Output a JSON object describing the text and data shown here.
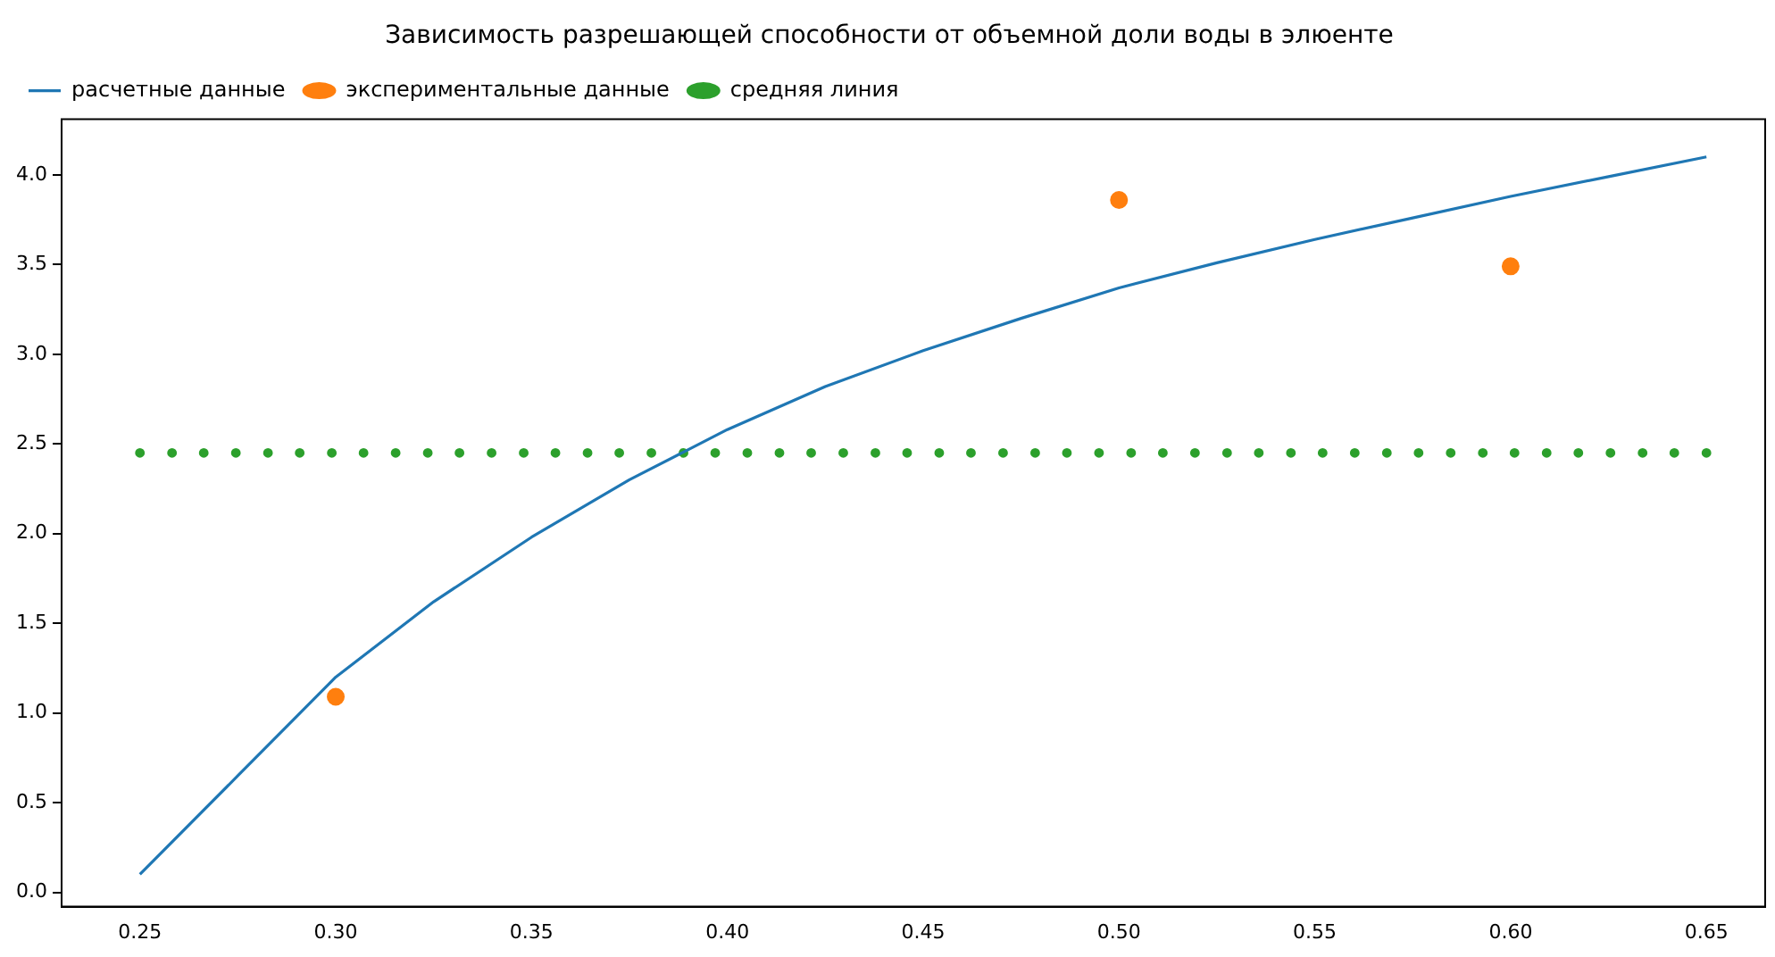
{
  "chart_data": {
    "type": "line",
    "title": "Зависимость разрешающей способности от объемной доли воды в элюенте",
    "series": [
      {
        "name": "расчетные данные",
        "type": "line",
        "marker": "none",
        "color": "#1f77b4",
        "x": [
          0.25,
          0.275,
          0.3,
          0.325,
          0.35,
          0.375,
          0.4,
          0.425,
          0.45,
          0.475,
          0.5,
          0.525,
          0.55,
          0.575,
          0.6,
          0.625,
          0.65
        ],
        "values": [
          0.1,
          0.65,
          1.2,
          1.62,
          1.98,
          2.3,
          2.58,
          2.82,
          3.02,
          3.2,
          3.37,
          3.51,
          3.64,
          3.76,
          3.88,
          3.99,
          4.1
        ]
      },
      {
        "name": "экспериментальные данные",
        "type": "scatter",
        "marker": "circle",
        "color": "#ff7f0e",
        "x": [
          0.3,
          0.5,
          0.6
        ],
        "values": [
          1.09,
          3.86,
          3.49
        ]
      },
      {
        "name": "средняя линия",
        "type": "scatter",
        "marker": "circle",
        "color": "#2ca02c",
        "x": [
          0.25,
          0.2582,
          0.2663,
          0.2745,
          0.2827,
          0.2908,
          0.299,
          0.3071,
          0.3153,
          0.3235,
          0.3316,
          0.3398,
          0.348,
          0.3561,
          0.3643,
          0.3724,
          0.3806,
          0.3888,
          0.3969,
          0.4051,
          0.4133,
          0.4214,
          0.4296,
          0.4378,
          0.4459,
          0.4541,
          0.4622,
          0.4704,
          0.4786,
          0.4867,
          0.4949,
          0.5031,
          0.5112,
          0.5194,
          0.5276,
          0.5357,
          0.5439,
          0.552,
          0.5602,
          0.5684,
          0.5765,
          0.5847,
          0.5929,
          0.601,
          0.6092,
          0.6173,
          0.6255,
          0.6337,
          0.6418,
          0.65
        ],
        "values": [
          2.45,
          2.45,
          2.45,
          2.45,
          2.45,
          2.45,
          2.45,
          2.45,
          2.45,
          2.45,
          2.45,
          2.45,
          2.45,
          2.45,
          2.45,
          2.45,
          2.45,
          2.45,
          2.45,
          2.45,
          2.45,
          2.45,
          2.45,
          2.45,
          2.45,
          2.45,
          2.45,
          2.45,
          2.45,
          2.45,
          2.45,
          2.45,
          2.45,
          2.45,
          2.45,
          2.45,
          2.45,
          2.45,
          2.45,
          2.45,
          2.45,
          2.45,
          2.45,
          2.45,
          2.45,
          2.45,
          2.45,
          2.45,
          2.45,
          2.45
        ]
      }
    ],
    "xlim": [
      0.23,
      0.665
    ],
    "xticks": [
      {
        "value": 0.25,
        "label": "0.25"
      },
      {
        "value": 0.3,
        "label": "0.30"
      },
      {
        "value": 0.35,
        "label": "0.35"
      },
      {
        "value": 0.4,
        "label": "0.40"
      },
      {
        "value": 0.45,
        "label": "0.45"
      },
      {
        "value": 0.5,
        "label": "0.50"
      },
      {
        "value": 0.55,
        "label": "0.55"
      },
      {
        "value": 0.6,
        "label": "0.60"
      },
      {
        "value": 0.65,
        "label": "0.65"
      }
    ],
    "ylim": [
      -0.08,
      4.31
    ],
    "yticks": [
      {
        "value": 0,
        "label": "0.0"
      },
      {
        "value": 0.5,
        "label": "0.5"
      },
      {
        "value": 1,
        "label": "1.0"
      },
      {
        "value": 1.5,
        "label": "1.5"
      },
      {
        "value": 2,
        "label": "2.0"
      },
      {
        "value": 2.5,
        "label": "2.5"
      },
      {
        "value": 3,
        "label": "3.0"
      },
      {
        "value": 3.5,
        "label": "3.5"
      },
      {
        "value": 4,
        "label": "4.0"
      }
    ],
    "grid": false,
    "legend": "top left"
  }
}
